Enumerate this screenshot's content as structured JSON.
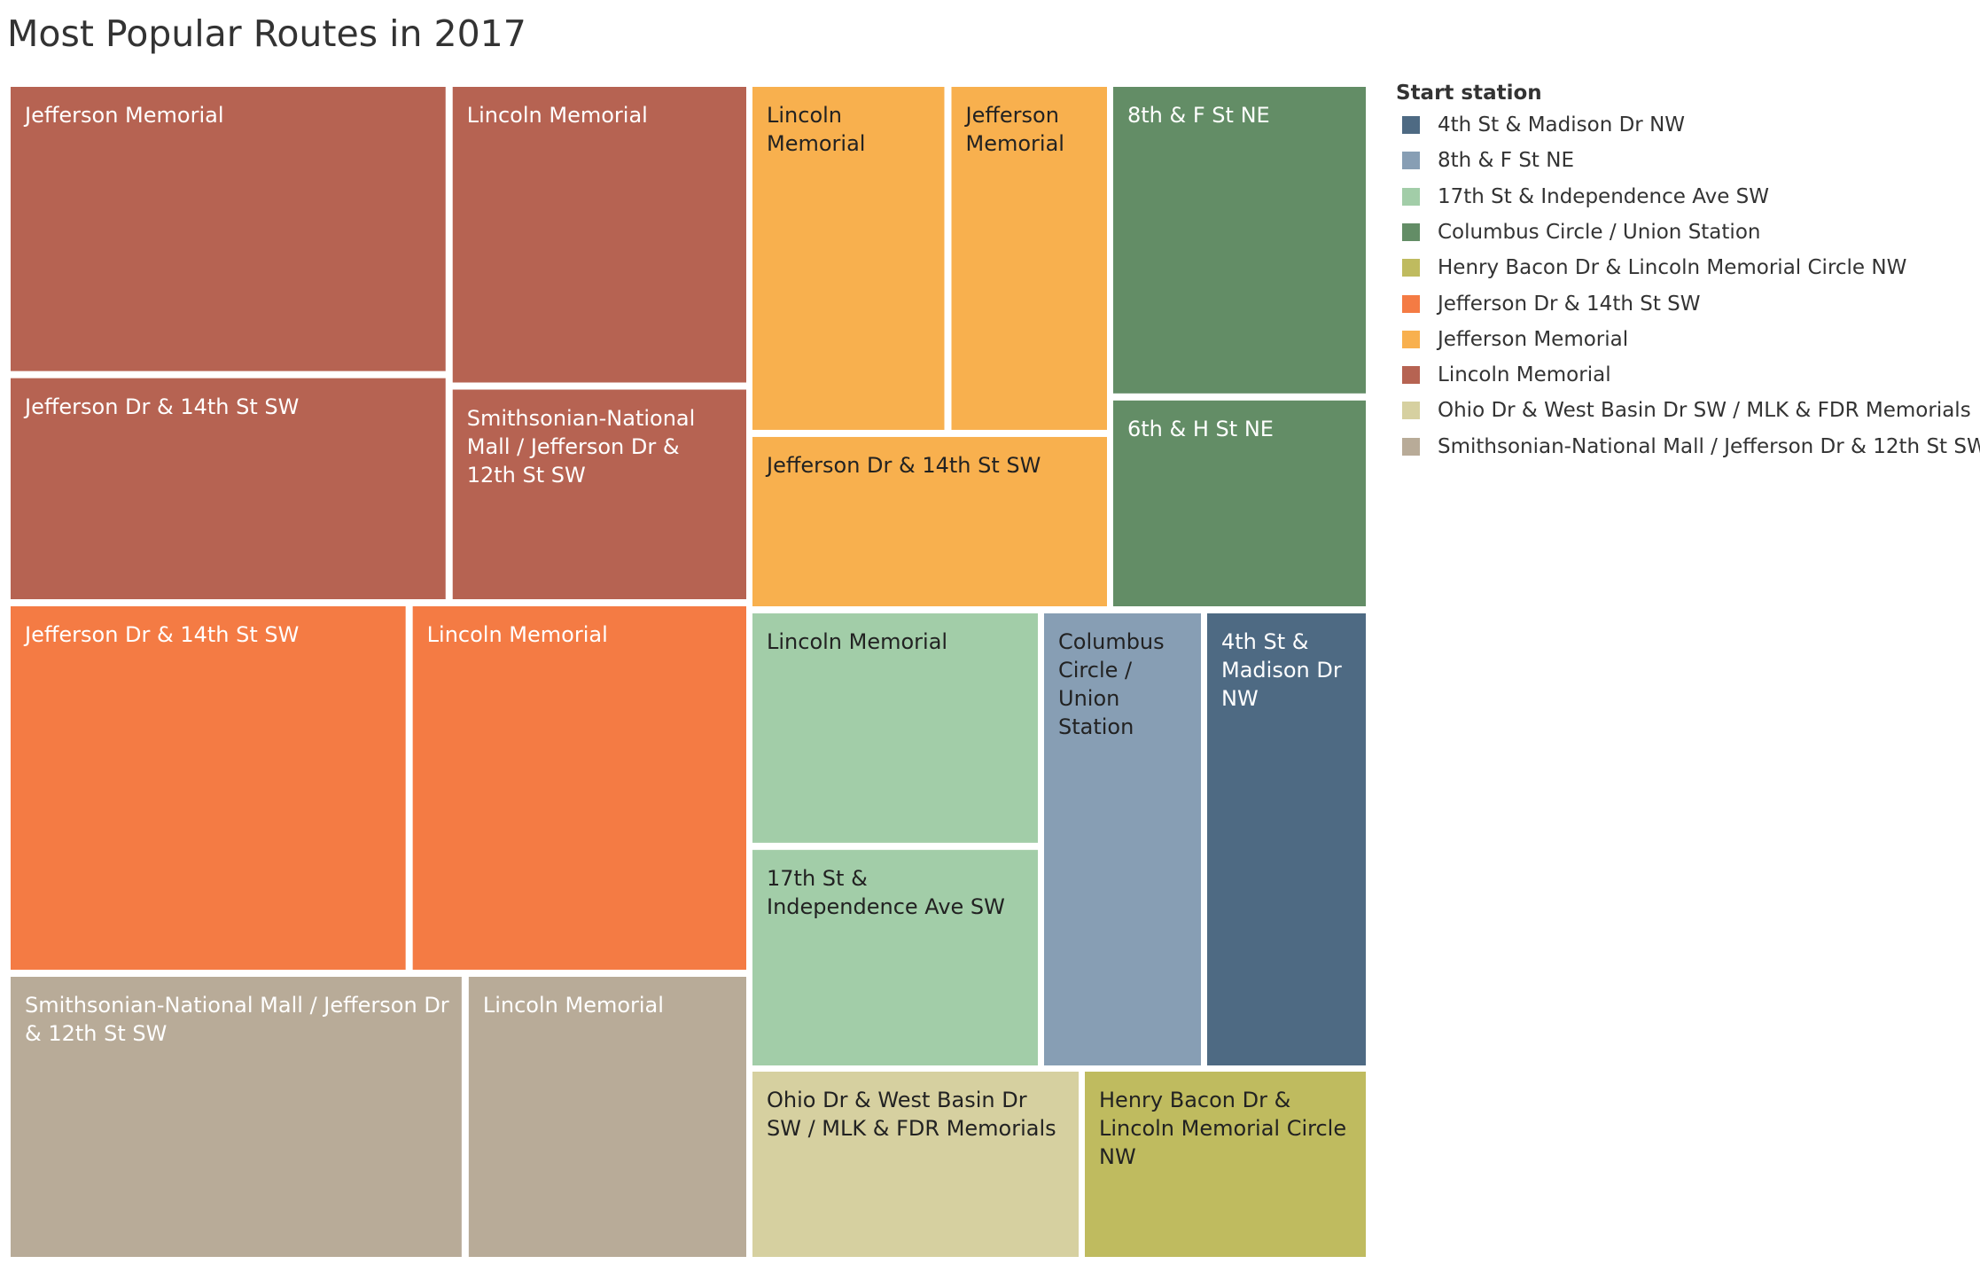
{
  "chart_data": {
    "type": "treemap",
    "title": "Most Popular Routes in 2017",
    "legend": {
      "title": "Start station",
      "placement": "right",
      "items": [
        {
          "name": "4th St & Madison Dr NW",
          "color": "#4e6a83"
        },
        {
          "name": "8th & F St NE",
          "color": "#879eb4"
        },
        {
          "name": "17th St & Independence Ave SW",
          "color": "#a2cda8"
        },
        {
          "name": "Columbus Circle / Union Station",
          "color": "#638d66"
        },
        {
          "name": "Henry Bacon Dr & Lincoln Memorial Circle NW",
          "color": "#bfbb5f"
        },
        {
          "name": "Jefferson Dr & 14th St SW",
          "color": "#f47b44"
        },
        {
          "name": "Jefferson Memorial",
          "color": "#f8b04e"
        },
        {
          "name": "Lincoln Memorial",
          "color": "#b66352"
        },
        {
          "name": "Ohio Dr & West Basin Dr SW / MLK & FDR Memorials",
          "color": "#d6d0a0"
        },
        {
          "name": "Smithsonian-National Mall / Jefferson Dr & 12th St SW",
          "color": "#b8ab98"
        }
      ]
    },
    "groups": [
      {
        "start": "Lincoln Memorial",
        "routes": [
          {
            "end": "Jefferson Memorial",
            "value": 1165
          },
          {
            "end": "Lincoln Memorial",
            "value": 818
          },
          {
            "end": "Jefferson Dr & 14th St SW",
            "value": 906
          },
          {
            "end": "Smithsonian-National Mall / Jefferson Dr & 12th St SW",
            "value": 580
          }
        ]
      },
      {
        "start": "Jefferson Dr & 14th St SW",
        "routes": [
          {
            "end": "Jefferson Dr & 14th St SW",
            "value": 1350
          },
          {
            "end": "Lincoln Memorial",
            "value": 1140
          }
        ]
      },
      {
        "start": "Smithsonian-National Mall / Jefferson Dr & 12th St SW",
        "routes": [
          {
            "end": "Smithsonian-National Mall / Jefferson Dr & 12th St SW",
            "value": 1170
          },
          {
            "end": "Lincoln Memorial",
            "value": 720
          }
        ]
      },
      {
        "start": "Jefferson Memorial",
        "routes": [
          {
            "end": "Lincoln Memorial",
            "value": 660
          },
          {
            "end": "Jefferson Memorial",
            "value": 535
          },
          {
            "end": "Jefferson Dr & 14th St SW",
            "value": 590
          }
        ]
      },
      {
        "start": "Columbus Circle / Union Station",
        "routes": [
          {
            "end": "8th & F St NE",
            "value": 700
          },
          {
            "end": "6th & H St NE",
            "value": 470
          }
        ]
      },
      {
        "start": "17th St & Independence Ave SW",
        "routes": [
          {
            "end": "Lincoln Memorial",
            "value": 580
          },
          {
            "end": "17th St & Independence Ave SW",
            "value": 545
          }
        ]
      },
      {
        "start": "8th & F St NE",
        "routes": [
          {
            "end": "Columbus Circle / Union Station",
            "value": 615
          }
        ]
      },
      {
        "start": "4th St & Madison Dr NW",
        "routes": [
          {
            "end": "4th St & Madison Dr NW",
            "value": 615
          }
        ]
      },
      {
        "start": "Ohio Dr & West Basin Dr SW / MLK & FDR Memorials",
        "routes": [
          {
            "end": "Ohio Dr & West Basin Dr SW / MLK & FDR Memorials",
            "value": 515
          }
        ]
      },
      {
        "start": "Henry Bacon Dr & Lincoln Memorial Circle NW",
        "routes": [
          {
            "end": "Henry Bacon Dr & Lincoln Memorial Circle NW",
            "value": 430
          }
        ]
      }
    ]
  }
}
